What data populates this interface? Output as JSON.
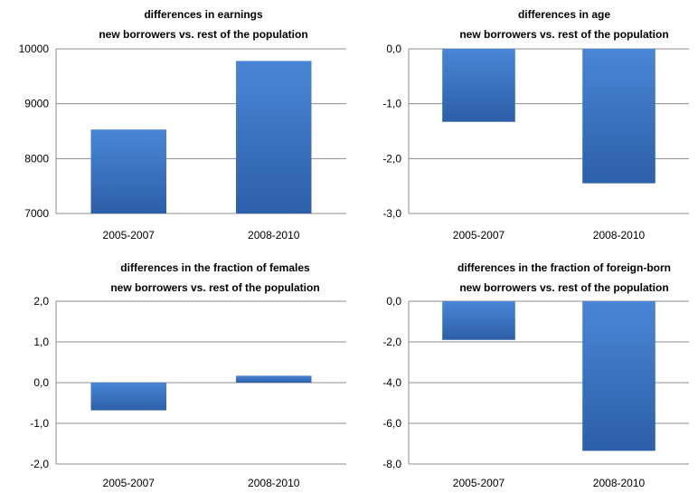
{
  "chart_data": [
    {
      "type": "bar",
      "title_lines": [
        "differences in earnings",
        "new borrowers vs. rest of the population"
      ],
      "categories": [
        "2005-2007",
        "2008-2010"
      ],
      "values": [
        8530,
        9780
      ],
      "ylim": [
        7000,
        10000
      ],
      "yticks": [
        7000,
        8000,
        9000,
        10000
      ],
      "ytick_labels": [
        "7000",
        "8000",
        "9000",
        "10000"
      ],
      "bar_color": "#3b73c4",
      "grid": true
    },
    {
      "type": "bar",
      "title_lines": [
        "differences in age",
        "new borrowers vs. rest of the population"
      ],
      "categories": [
        "2005-2007",
        "2008-2010"
      ],
      "values": [
        -1.33,
        -2.45
      ],
      "ylim": [
        -3.0,
        0.0
      ],
      "yticks": [
        -3.0,
        -2.0,
        -1.0,
        0.0
      ],
      "ytick_labels": [
        "-3,0",
        "-2,0",
        "-1,0",
        "0,0"
      ],
      "bar_color": "#3b73c4",
      "grid": true
    },
    {
      "type": "bar",
      "title_lines": [
        "differences in the fraction of females",
        "new borrowers vs. rest of the population"
      ],
      "categories": [
        "2005-2007",
        "2008-2010"
      ],
      "values": [
        -0.68,
        0.17
      ],
      "ylim": [
        -2.0,
        2.0
      ],
      "yticks": [
        -2.0,
        -1.0,
        0.0,
        1.0,
        2.0
      ],
      "ytick_labels": [
        "-2,0",
        "-1,0",
        "0,0",
        "1,0",
        "2,0"
      ],
      "bar_color": "#3b73c4",
      "grid": true
    },
    {
      "type": "bar",
      "title_lines": [
        "differences in the fraction of foreign-born",
        "new borrowers vs. rest of the population"
      ],
      "categories": [
        "2005-2007",
        "2008-2010"
      ],
      "values": [
        -1.9,
        -7.35
      ],
      "ylim": [
        -8.0,
        0.0
      ],
      "yticks": [
        -8.0,
        -6.0,
        -4.0,
        -2.0,
        0.0
      ],
      "ytick_labels": [
        "-8,0",
        "-6,0",
        "-4,0",
        "-2,0",
        "0,0"
      ],
      "bar_color": "#3b73c4",
      "grid": true
    }
  ]
}
